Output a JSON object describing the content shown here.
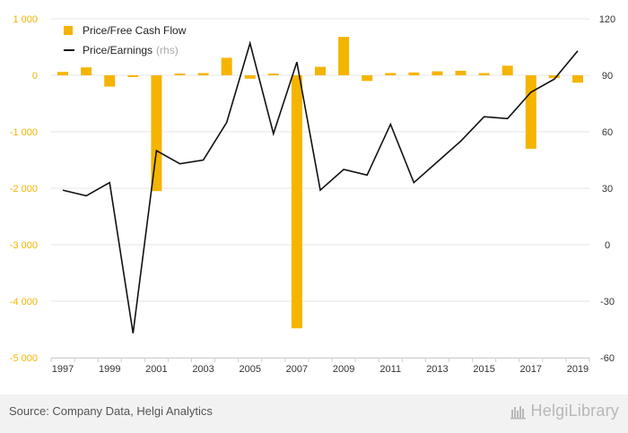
{
  "chart_data": {
    "type": "bar+line",
    "categories": [
      1997,
      1998,
      1999,
      2000,
      2001,
      2002,
      2003,
      2004,
      2005,
      2006,
      2007,
      2008,
      2009,
      2010,
      2011,
      2012,
      2013,
      2014,
      2015,
      2016,
      2017,
      2018,
      2019
    ],
    "x_tick_labels": [
      "1997",
      "1999",
      "2001",
      "2003",
      "2005",
      "2007",
      "2009",
      "2011",
      "2013",
      "2015",
      "2017",
      "2019"
    ],
    "series": [
      {
        "name": "Price/Free Cash Flow",
        "type": "bar",
        "axis": "left",
        "values": [
          60,
          140,
          -200,
          -30,
          -2050,
          30,
          40,
          310,
          -60,
          30,
          -4480,
          150,
          680,
          -100,
          40,
          50,
          70,
          80,
          40,
          170,
          -1300,
          -50,
          -130
        ]
      },
      {
        "name": "Price/Earnings",
        "name_suffix": "(rhs)",
        "type": "line",
        "axis": "right",
        "values": [
          29,
          26,
          33,
          -47,
          50,
          43,
          45,
          65,
          107,
          59,
          97,
          29,
          40,
          37,
          64,
          33,
          44,
          55,
          68,
          67,
          81,
          88,
          103
        ]
      }
    ],
    "y_left": {
      "range": [
        -5000,
        1000
      ],
      "ticks": [
        "1 000",
        "0",
        "-1 000",
        "-2 000",
        "-3 000",
        "-4 000",
        "-5 000"
      ],
      "tick_values": [
        1000,
        0,
        -1000,
        -2000,
        -3000,
        -4000,
        -5000
      ]
    },
    "y_right": {
      "range": [
        -60,
        120
      ],
      "ticks": [
        "120",
        "90",
        "60",
        "30",
        "0",
        "-30",
        "-60"
      ],
      "tick_values": [
        120,
        90,
        60,
        30,
        0,
        -30,
        -60
      ]
    },
    "legend_position": "top-left",
    "grid": true,
    "colors": {
      "bar": "#f5b400",
      "line": "#111111",
      "left_axis_text": "#f5b400",
      "right_axis_text": "#333333",
      "grid": "#e6e6e6"
    }
  },
  "footer": {
    "source": "Source: Company Data, Helgi Analytics",
    "brand": "HelgiLibrary"
  }
}
